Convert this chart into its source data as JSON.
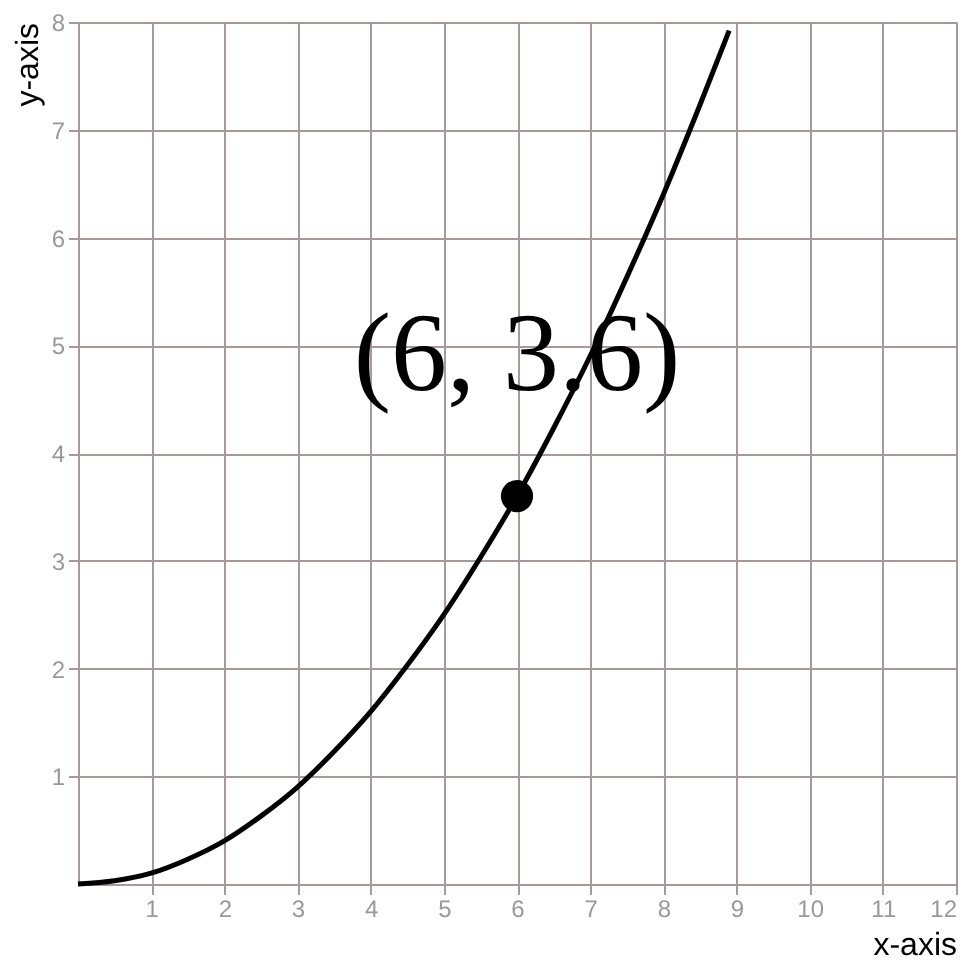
{
  "chart_data": {
    "type": "line",
    "xlabel": "x-axis",
    "ylabel": "y-axis",
    "xlim": [
      0,
      12
    ],
    "ylim": [
      0,
      8
    ],
    "xticks": [
      1,
      2,
      3,
      4,
      5,
      6,
      7,
      8,
      9,
      10,
      11,
      12
    ],
    "yticks": [
      1,
      2,
      3,
      4,
      5,
      6,
      7,
      8
    ],
    "grid": true,
    "marker": "none",
    "series": [
      {
        "color": "#000000",
        "x": [
          0,
          0.5,
          1,
          1.5,
          2,
          2.5,
          3,
          3.5,
          4,
          4.5,
          5,
          5.5,
          6,
          6.5,
          7,
          7.5,
          8,
          8.5,
          8.9
        ],
        "values": [
          0,
          0.03,
          0.1,
          0.23,
          0.4,
          0.63,
          0.9,
          1.23,
          1.6,
          2.03,
          2.5,
          3.03,
          3.6,
          4.23,
          4.9,
          5.63,
          6.4,
          7.23,
          7.92
        ]
      },
      {
        "type": "scatter",
        "color": "#000000",
        "marker": "circle",
        "x": [
          6
        ],
        "values": [
          3.6
        ]
      }
    ],
    "annotations": [
      {
        "text": "(6, 3.6)",
        "x": 6,
        "y": 3.6
      }
    ]
  }
}
